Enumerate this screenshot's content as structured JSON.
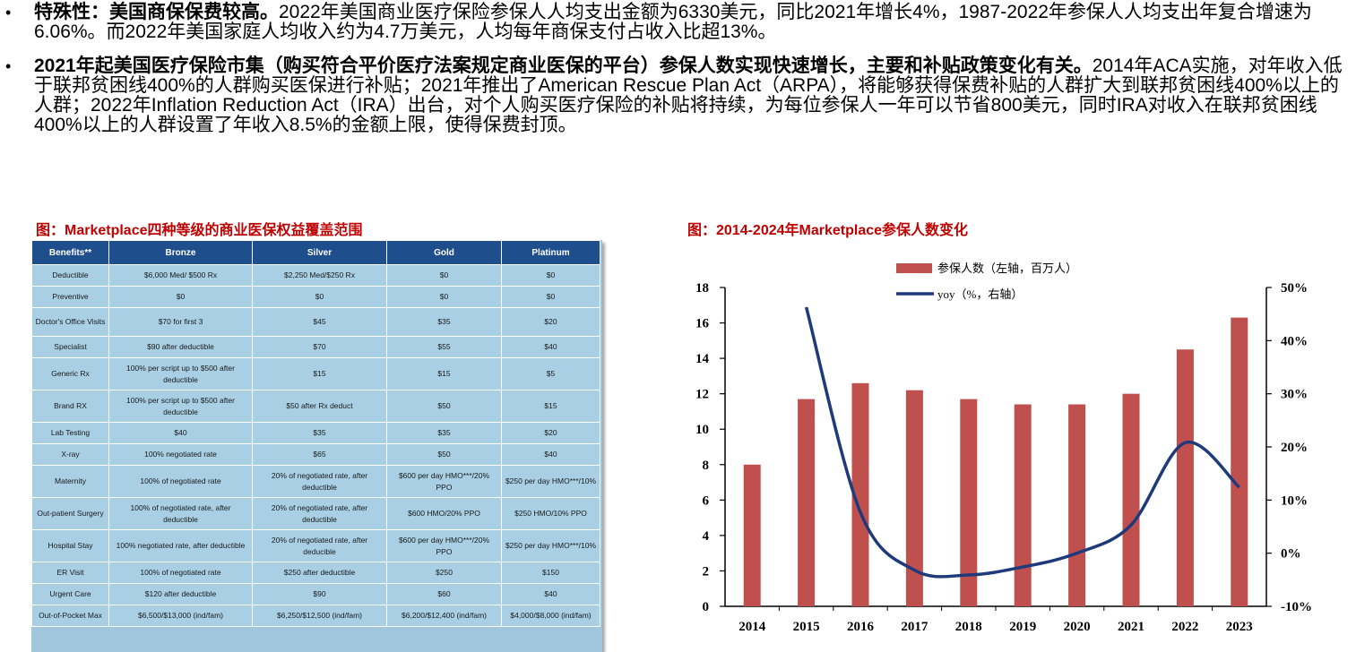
{
  "bullets": [
    {
      "bold": "特殊性：美国商保保费较高。",
      "text": "2022年美国商业医疗保险参保人人均支出金额为6330美元，同比2021年增长4%，1987-2022年参保人人均支出年复合增速为6.06%。而2022年美国家庭人均收入约为4.7万美元，人均每年商保支付占收入比超13%。"
    },
    {
      "bold": "2021年起美国医疗保险市集（购买符合平价医疗法案规定商业医保的平台）参保人数实现快速增长，主要和补贴政策变化有关。",
      "text": "2014年ACA实施，对年收入低于联邦贫困线400%的人群购买医保进行补贴；2021年推出了American Rescue Plan Act（ARPA），将能够获得保费补贴的人群扩大到联邦贫困线400%以上的人群；2022年Inflation Reduction Act（IRA）出台，对个人购买医疗保险的补贴将持续，为每位参保人一年可以节省800美元，同时IRA对收入在联邦贫困线400%以上的人群设置了年收入8.5%的金额上限，使得保费封顶。"
    }
  ],
  "bullet_symbol": "•",
  "table_figure": {
    "title": "图：Marketplace四种等级的商业医保权益覆盖范围",
    "headers": [
      "Benefits**",
      "Bronze",
      "Silver",
      "Gold",
      "Platinum"
    ],
    "rows": [
      [
        "Deductible",
        "$6,000 Med/ $500 Rx",
        "$2,250 Med/$250 Rx",
        "$0",
        "$0"
      ],
      [
        "Preventive",
        "$0",
        "$0",
        "$0",
        "$0"
      ],
      [
        "Doctor's Office Visits",
        "$70 for first 3",
        "$45",
        "$35",
        "$20"
      ],
      [
        "Specialist",
        "$90 after deductible",
        "$70",
        "$55",
        "$40"
      ],
      [
        "Generic Rx",
        "100% per script up to $500 after deductible",
        "$15",
        "$15",
        "$5"
      ],
      [
        "Brand RX",
        "100% per script up to $500 after deductible",
        "$50 after Rx deduct",
        "$50",
        "$15"
      ],
      [
        "Lab Testing",
        "$40",
        "$35",
        "$35",
        "$20"
      ],
      [
        "X-ray",
        "100% negotiated rate",
        "$65",
        "$50",
        "$40"
      ],
      [
        "Maternity",
        "100% of negotiated rate",
        "20% of negotiated rate, after deductible",
        "$600 per day HMO***/20% PPO",
        "$250 per day HMO***/10%"
      ],
      [
        "Out-patient Surgery",
        "100% of negotiated rate, after deductible",
        "20% of negotiated rate, after deductible",
        "$600 HMO/20% PPO",
        "$250 HMO/10% PPO"
      ],
      [
        "Hospital Stay",
        "100% negotiated rate, after deductible",
        "20% of negotiated rate, after deducible",
        "$600 per day HMO***/20% PPO",
        "$250 per day HMO***/10%"
      ],
      [
        "ER Visit",
        "100% of negotiated rate",
        "$250 after deductible",
        "$250",
        "$150"
      ],
      [
        "Urgent Care",
        "$120 after deductible",
        "$90",
        "$60",
        "$40"
      ],
      [
        "Out-of-Pocket Max",
        "$6,500/$13,000 (ind/fam)",
        "$6,250/$12,500 (ind/fam)",
        "$6,200/$12,400 (ind/fam)",
        "$4,000/$8,000 (ind/fam)"
      ]
    ],
    "row_height_classes": [
      "h1",
      "h1",
      "h2",
      "h1",
      "h3",
      "h3",
      "h1",
      "h1",
      "h3",
      "h3",
      "h3",
      "h1",
      "h1",
      "h1"
    ],
    "colors": {
      "header_bg": "#1f4e8c",
      "cell_bg": "#a8cfe3"
    }
  },
  "chart_figure": {
    "title": "图：2014-2024年Marketplace参保人数变化"
  },
  "chart_data": {
    "type": "bar",
    "categories": [
      "2014",
      "2015",
      "2016",
      "2017",
      "2018",
      "2019",
      "2020",
      "2021",
      "2022",
      "2023"
    ],
    "series": [
      {
        "name": "参保人数（左轴，百万人）",
        "type": "bar",
        "axis": "left",
        "color": "#c0504d",
        "values": [
          8.0,
          11.7,
          12.6,
          12.2,
          11.7,
          11.4,
          11.4,
          12.0,
          14.5,
          16.3
        ]
      },
      {
        "name": "yoy（%，右轴）",
        "type": "line",
        "axis": "right",
        "color": "#1f3a7a",
        "values": [
          null,
          46.3,
          7.7,
          -3.2,
          -4.1,
          -2.6,
          0.0,
          5.3,
          20.8,
          12.4
        ]
      }
    ],
    "left_axis": {
      "min": 0,
      "max": 18,
      "ticks": [
        "0",
        "2",
        "4",
        "6",
        "8",
        "10",
        "12",
        "14",
        "16",
        "18"
      ]
    },
    "right_axis": {
      "min": -10,
      "max": 50,
      "ticks": [
        "-10%",
        "0%",
        "10%",
        "20%",
        "30%",
        "40%",
        "50%"
      ]
    },
    "legend": "top-center",
    "grid": false
  }
}
